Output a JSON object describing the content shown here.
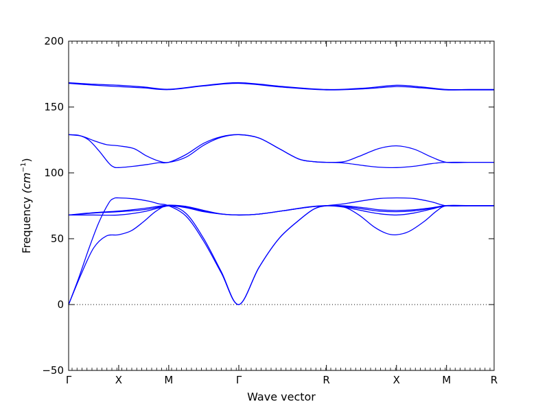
{
  "chart_data": {
    "type": "line",
    "title": "",
    "xlabel": "Wave vector",
    "ylabel": "Frequency",
    "ylabel_unit": "(cm",
    "ylabel_unit_exp": "−1",
    "ylabel_unit_close": ")",
    "ylim": [
      -50,
      200
    ],
    "yticks": [
      "200",
      "150",
      "100",
      "50",
      "0",
      "−50"
    ],
    "ytick_values": [
      200,
      150,
      100,
      50,
      0,
      -50
    ],
    "xlim": [
      0,
      8.5
    ],
    "xticks": [
      {
        "label": "Γ",
        "x": 0
      },
      {
        "label": "X",
        "x": 1
      },
      {
        "label": "M",
        "x": 2
      },
      {
        "label": "Γ",
        "x": 3.4
      },
      {
        "label": "R",
        "x": 5.15
      },
      {
        "label": "X",
        "x": 6.55
      },
      {
        "label": "M",
        "x": 7.55
      },
      {
        "label": "R",
        "x": 8.5
      }
    ],
    "zero_line": true,
    "grid": false,
    "line_color": "#0000ff",
    "series": [
      {
        "points": [
          [
            0,
            168.5
          ],
          [
            0.5,
            167.3
          ],
          [
            1,
            166.5
          ],
          [
            1.5,
            165.2
          ],
          [
            2,
            163.5
          ],
          [
            2.7,
            166.3
          ],
          [
            3.4,
            168.5
          ],
          [
            4.3,
            165.5
          ],
          [
            5.15,
            163.3
          ],
          [
            5.9,
            164.3
          ],
          [
            6.55,
            166.5
          ],
          [
            7.05,
            165.2
          ],
          [
            7.55,
            163.3
          ],
          [
            8.0,
            163.3
          ],
          [
            8.5,
            163.3
          ]
        ]
      },
      {
        "points": [
          [
            0,
            168.0
          ],
          [
            0.5,
            166.6
          ],
          [
            1,
            165.5
          ],
          [
            1.5,
            164.5
          ],
          [
            2,
            163.2
          ],
          [
            2.7,
            166.0
          ],
          [
            3.4,
            168.0
          ],
          [
            4.3,
            165.0
          ],
          [
            5.15,
            163.0
          ],
          [
            5.9,
            163.8
          ],
          [
            6.55,
            165.5
          ],
          [
            7.05,
            164.5
          ],
          [
            7.55,
            163.0
          ],
          [
            8.0,
            163.0
          ],
          [
            8.5,
            163.0
          ]
        ]
      },
      {
        "points": [
          [
            0,
            129
          ],
          [
            0.25,
            128
          ],
          [
            0.5,
            124.5
          ],
          [
            0.75,
            121.5
          ],
          [
            1,
            120.5
          ],
          [
            1.3,
            118.5
          ],
          [
            1.55,
            113
          ],
          [
            1.8,
            109
          ],
          [
            2,
            108
          ],
          [
            2.35,
            112
          ],
          [
            2.7,
            121
          ],
          [
            3.05,
            127
          ],
          [
            3.4,
            129
          ],
          [
            3.8,
            126.5
          ],
          [
            4.2,
            118.5
          ],
          [
            4.6,
            110.5
          ],
          [
            4.9,
            108.5
          ],
          [
            5.15,
            108
          ],
          [
            5.5,
            108.5
          ],
          [
            5.8,
            112.5
          ],
          [
            6.2,
            118.5
          ],
          [
            6.55,
            120.5
          ],
          [
            6.9,
            118
          ],
          [
            7.25,
            112
          ],
          [
            7.55,
            108
          ],
          [
            8.0,
            108
          ],
          [
            8.5,
            108
          ]
        ]
      },
      {
        "points": [
          [
            0,
            129
          ],
          [
            0.2,
            128.5
          ],
          [
            0.4,
            125
          ],
          [
            0.6,
            117
          ],
          [
            0.8,
            107.5
          ],
          [
            0.9,
            104.5
          ],
          [
            1,
            104
          ],
          [
            1.3,
            105
          ],
          [
            1.6,
            106.5
          ],
          [
            1.8,
            107.7
          ],
          [
            2,
            108
          ],
          [
            2.35,
            114
          ],
          [
            2.7,
            122.5
          ],
          [
            3.05,
            127.5
          ],
          [
            3.4,
            129
          ],
          [
            3.8,
            126.5
          ],
          [
            4.2,
            118.5
          ],
          [
            4.6,
            110.5
          ],
          [
            4.9,
            108.5
          ],
          [
            5.15,
            108
          ],
          [
            5.5,
            107.5
          ],
          [
            5.9,
            105.5
          ],
          [
            6.2,
            104.3
          ],
          [
            6.55,
            104
          ],
          [
            6.9,
            105
          ],
          [
            7.25,
            107
          ],
          [
            7.55,
            108
          ],
          [
            8.0,
            108
          ],
          [
            8.5,
            108
          ]
        ]
      },
      {
        "points": [
          [
            0,
            0
          ],
          [
            0.25,
            23
          ],
          [
            0.5,
            43
          ],
          [
            0.75,
            52
          ],
          [
            1,
            53
          ],
          [
            1.25,
            56
          ],
          [
            1.5,
            63
          ],
          [
            1.75,
            71
          ],
          [
            2,
            75
          ],
          [
            2.35,
            69
          ],
          [
            2.7,
            50
          ],
          [
            3.05,
            25
          ],
          [
            3.4,
            0
          ],
          [
            3.8,
            28
          ],
          [
            4.2,
            50
          ],
          [
            4.6,
            64
          ],
          [
            4.9,
            72.5
          ],
          [
            5.15,
            75
          ],
          [
            5.5,
            74
          ],
          [
            5.8,
            68
          ],
          [
            6.1,
            59
          ],
          [
            6.35,
            54
          ],
          [
            6.55,
            53
          ],
          [
            6.8,
            55.5
          ],
          [
            7.1,
            63
          ],
          [
            7.35,
            71
          ],
          [
            7.55,
            75
          ],
          [
            8.0,
            75
          ],
          [
            8.5,
            75
          ]
        ]
      },
      {
        "points": [
          [
            0,
            0
          ],
          [
            0.2,
            20
          ],
          [
            0.4,
            42
          ],
          [
            0.6,
            62
          ],
          [
            0.8,
            77
          ],
          [
            0.9,
            80.5
          ],
          [
            1,
            81
          ],
          [
            1.3,
            80.3
          ],
          [
            1.6,
            78.5
          ],
          [
            1.8,
            76.5
          ],
          [
            2,
            75
          ],
          [
            2.35,
            67
          ],
          [
            2.7,
            48
          ],
          [
            3.05,
            24
          ],
          [
            3.4,
            0
          ],
          [
            3.8,
            28
          ],
          [
            4.2,
            50
          ],
          [
            4.6,
            64
          ],
          [
            4.9,
            72.5
          ],
          [
            5.15,
            75
          ],
          [
            5.5,
            76.5
          ],
          [
            5.9,
            79
          ],
          [
            6.2,
            80.5
          ],
          [
            6.55,
            81
          ],
          [
            6.9,
            80.5
          ],
          [
            7.25,
            78
          ],
          [
            7.55,
            75
          ],
          [
            8.0,
            75
          ],
          [
            8.5,
            75
          ]
        ]
      },
      {
        "points": [
          [
            0,
            68
          ],
          [
            0.5,
            69.5
          ],
          [
            1,
            70.5
          ],
          [
            1.5,
            72
          ],
          [
            2,
            75
          ],
          [
            2.35,
            73.5
          ],
          [
            2.7,
            70.5
          ],
          [
            3.05,
            68.7
          ],
          [
            3.4,
            68
          ],
          [
            3.8,
            68.7
          ],
          [
            4.3,
            71.3
          ],
          [
            4.8,
            74
          ],
          [
            5.15,
            75
          ],
          [
            5.5,
            74.5
          ],
          [
            5.9,
            72.5
          ],
          [
            6.2,
            71
          ],
          [
            6.55,
            70.5
          ],
          [
            6.9,
            71.2
          ],
          [
            7.25,
            73
          ],
          [
            7.55,
            75
          ],
          [
            8.0,
            75
          ],
          [
            8.5,
            75
          ]
        ]
      },
      {
        "points": [
          [
            0,
            68
          ],
          [
            0.5,
            68
          ],
          [
            1,
            68
          ],
          [
            1.5,
            70.5
          ],
          [
            2,
            75
          ],
          [
            2.35,
            74.5
          ],
          [
            2.7,
            71.5
          ],
          [
            3.05,
            68.8
          ],
          [
            3.4,
            68
          ],
          [
            3.8,
            68.7
          ],
          [
            4.3,
            71.3
          ],
          [
            4.8,
            74
          ],
          [
            5.15,
            75
          ],
          [
            5.5,
            74
          ],
          [
            5.9,
            71
          ],
          [
            6.2,
            69
          ],
          [
            6.55,
            68
          ],
          [
            6.9,
            69.5
          ],
          [
            7.25,
            72.5
          ],
          [
            7.55,
            75
          ],
          [
            8.0,
            75
          ],
          [
            8.5,
            75
          ]
        ]
      },
      {
        "points": [
          [
            0,
            68
          ],
          [
            0.5,
            69.8
          ],
          [
            1,
            71
          ],
          [
            1.5,
            73
          ],
          [
            2,
            75.5
          ],
          [
            2.35,
            74
          ],
          [
            2.7,
            71
          ],
          [
            3.05,
            68.8
          ],
          [
            3.4,
            68
          ],
          [
            3.8,
            68.7
          ],
          [
            4.3,
            71.3
          ],
          [
            4.8,
            74.2
          ],
          [
            5.15,
            75.2
          ],
          [
            5.5,
            75
          ],
          [
            5.9,
            73.5
          ],
          [
            6.2,
            72
          ],
          [
            6.55,
            71.5
          ],
          [
            6.9,
            72
          ],
          [
            7.25,
            73.5
          ],
          [
            7.55,
            75.2
          ],
          [
            8.0,
            75.2
          ],
          [
            8.5,
            75.2
          ]
        ]
      }
    ]
  }
}
